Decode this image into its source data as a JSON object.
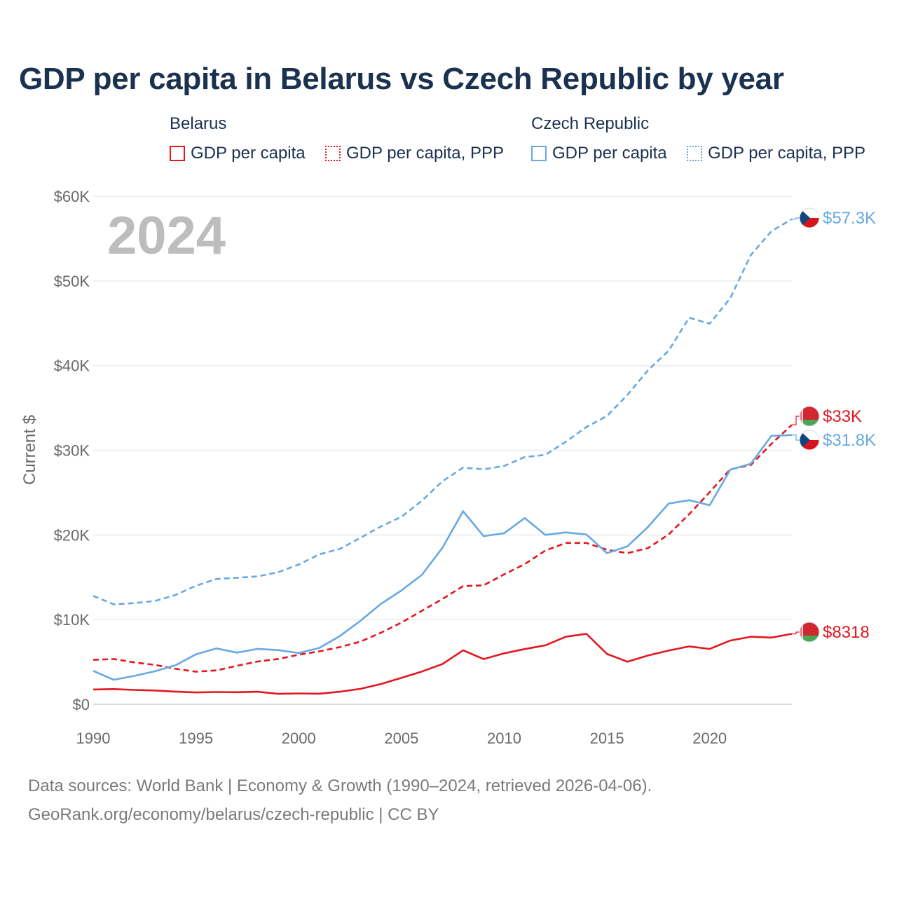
{
  "title": "GDP per capita in Belarus vs Czech Republic by year",
  "legend": {
    "belarus": {
      "name": "Belarus",
      "gdp": "GDP per capita",
      "ppp": "GDP per capita, PPP"
    },
    "czech": {
      "name": "Czech Republic",
      "gdp": "GDP per capita",
      "ppp": "GDP per capita, PPP"
    }
  },
  "year_watermark": "2024",
  "footer": {
    "line1": "Data sources: World Bank | Economy & Growth (1990–2024, retrieved 2026-04-06).",
    "line2": "GeoRank.org/economy/belarus/czech-republic | CC BY"
  },
  "colors": {
    "belarus": "#e3171f",
    "czech": "#66a9e3"
  },
  "chart_data": {
    "type": "line",
    "title": "GDP per capita in Belarus vs Czech Republic by year",
    "xlabel": "",
    "ylabel": "Current $",
    "xlim": [
      1990,
      2024
    ],
    "ylim": [
      0,
      60000
    ],
    "x_ticks": [
      1990,
      1995,
      2000,
      2005,
      2010,
      2015,
      2020
    ],
    "x_tick_labels": [
      "1990",
      "1995",
      "2000",
      "2005",
      "2010",
      "2015",
      "2020"
    ],
    "y_ticks": [
      0,
      10000,
      20000,
      30000,
      40000,
      50000,
      60000
    ],
    "y_tick_labels": [
      "$0",
      "$10K",
      "$20K",
      "$30K",
      "$40K",
      "$50K",
      "$60K"
    ],
    "x": [
      1990,
      1991,
      1992,
      1993,
      1994,
      1995,
      1996,
      1997,
      1998,
      1999,
      2000,
      2001,
      2002,
      2003,
      2004,
      2005,
      2006,
      2007,
      2008,
      2009,
      2010,
      2011,
      2012,
      2013,
      2014,
      2015,
      2016,
      2017,
      2018,
      2019,
      2020,
      2021,
      2022,
      2023,
      2024
    ],
    "series": [
      {
        "name": "Belarus GDP per capita",
        "country": "belarus",
        "style": "solid",
        "values": [
          1750,
          1800,
          1700,
          1630,
          1500,
          1400,
          1450,
          1420,
          1480,
          1230,
          1280,
          1250,
          1480,
          1820,
          2390,
          3130,
          3870,
          4760,
          6380,
          5340,
          6020,
          6520,
          6960,
          7980,
          8320,
          5950,
          5020,
          5760,
          6340,
          6840,
          6540,
          7520,
          7980,
          7880,
          8318
        ],
        "end_label": "$8318"
      },
      {
        "name": "Belarus GDP per capita, PPP",
        "country": "belarus",
        "style": "dashed",
        "values": [
          5250,
          5350,
          4950,
          4650,
          4200,
          3850,
          4000,
          4550,
          5050,
          5350,
          5850,
          6250,
          6750,
          7400,
          8450,
          9650,
          11050,
          12450,
          13950,
          14050,
          15350,
          16550,
          18150,
          19050,
          19050,
          18250,
          17850,
          18450,
          20050,
          22450,
          25050,
          27750,
          28250,
          30750,
          33000
        ],
        "end_label": "$33K"
      },
      {
        "name": "Czech Republic GDP per capita",
        "country": "czech",
        "style": "solid",
        "values": [
          3950,
          2900,
          3350,
          3900,
          4600,
          5900,
          6600,
          6100,
          6550,
          6400,
          6050,
          6650,
          8050,
          9850,
          11850,
          13450,
          15300,
          18500,
          22800,
          19850,
          20200,
          22000,
          20000,
          20300,
          20050,
          17850,
          18650,
          20950,
          23700,
          24100,
          23500,
          27700,
          28400,
          31700,
          31800
        ],
        "end_label": "$31.8K"
      },
      {
        "name": "Czech Republic GDP per capita, PPP",
        "country": "czech",
        "style": "dashed",
        "values": [
          12800,
          11800,
          11950,
          12200,
          12900,
          14000,
          14800,
          14950,
          15100,
          15600,
          16500,
          17700,
          18350,
          19650,
          21000,
          22150,
          24050,
          26350,
          27950,
          27750,
          28150,
          29200,
          29450,
          31000,
          32750,
          34050,
          36550,
          39450,
          41750,
          45650,
          44950,
          47950,
          53050,
          55850,
          57300
        ],
        "end_label": "$57.3K"
      }
    ]
  }
}
